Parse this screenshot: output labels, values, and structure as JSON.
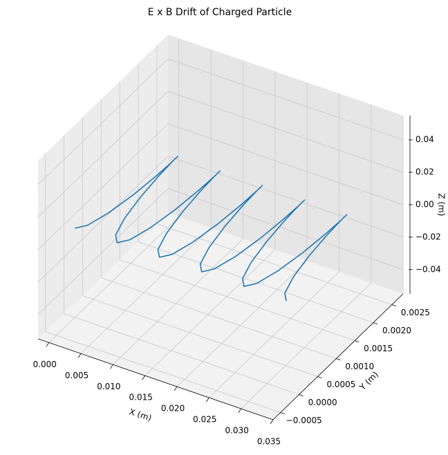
{
  "chart_data": {
    "type": "line3d",
    "title": "E x B Drift of Charged Particle",
    "xlabel": "X (m)",
    "ylabel": "Y (m)",
    "zlabel": "Z (m)",
    "xlim": [
      -0.0017,
      0.035
    ],
    "ylim": [
      -0.0007,
      0.0028
    ],
    "zlim": [
      -0.055,
      0.055
    ],
    "xticks": [
      {
        "value": 0,
        "label": "0.000"
      },
      {
        "value": 0.005,
        "label": "0.005"
      },
      {
        "value": 0.01,
        "label": "0.010"
      },
      {
        "value": 0.015,
        "label": "0.015"
      },
      {
        "value": 0.02,
        "label": "0.020"
      },
      {
        "value": 0.025,
        "label": "0.025"
      },
      {
        "value": 0.03,
        "label": "0.030"
      },
      {
        "value": 0.035,
        "label": "0.035"
      }
    ],
    "yticks": [
      {
        "value": -0.0005,
        "label": "−0.0005"
      },
      {
        "value": 0,
        "label": "0.0000"
      },
      {
        "value": 0.0005,
        "label": "0.0005"
      },
      {
        "value": 0.001,
        "label": "0.0010"
      },
      {
        "value": 0.0015,
        "label": "0.0015"
      },
      {
        "value": 0.002,
        "label": "0.0020"
      },
      {
        "value": 0.0025,
        "label": "0.0025"
      }
    ],
    "zticks": [
      {
        "value": -0.04,
        "label": "−0.04"
      },
      {
        "value": -0.02,
        "label": "−0.02"
      },
      {
        "value": 0,
        "label": "0.00"
      },
      {
        "value": 0.02,
        "label": "0.02"
      },
      {
        "value": 0.04,
        "label": "0.04"
      }
    ],
    "grid": true,
    "series": [
      {
        "color": "#1f77b4",
        "x": [
          0,
          0.0011,
          0.00205,
          0.00275,
          0.00315,
          0.0033,
          0.0033,
          0.0033,
          0.00345,
          0.00385,
          0.00455,
          0.0055,
          0.0066,
          0.0077,
          0.00865,
          0.00935,
          0.00975,
          0.0099,
          0.0099,
          0.0099,
          0.01005,
          0.01045,
          0.01115,
          0.0121,
          0.0132,
          0.0143,
          0.01525,
          0.01595,
          0.01635,
          0.0165,
          0.0165,
          0.0165,
          0.01665,
          0.01705,
          0.01775,
          0.0187,
          0.0198,
          0.0209,
          0.02185,
          0.02255,
          0.02295,
          0.0231,
          0.0231,
          0.0231,
          0.02325,
          0.02365,
          0.02435,
          0.0253,
          0.0264,
          0.0275,
          0.02845,
          0.02915,
          0.02955,
          0.0297,
          0.0297,
          0.0297,
          0.02985,
          0.03025,
          0.03095,
          0.0319,
          0.033
        ],
        "y": [
          0,
          0.00015,
          0.00055,
          0.0011,
          0.00165,
          0.00205,
          0.0022,
          0.00205,
          0.00165,
          0.0011,
          0.00055,
          0.00015,
          0,
          0.00015,
          0.00055,
          0.0011,
          0.00165,
          0.00205,
          0.0022,
          0.00205,
          0.00165,
          0.0011,
          0.00055,
          0.00015,
          0,
          0.00015,
          0.00055,
          0.0011,
          0.00165,
          0.00205,
          0.0022,
          0.00205,
          0.00165,
          0.0011,
          0.00055,
          0.00015,
          0,
          0.00015,
          0.00055,
          0.0011,
          0.00165,
          0.00205,
          0.0022,
          0.00205,
          0.00165,
          0.0011,
          0.00055,
          0.00015,
          0,
          0.00015,
          0.00055,
          0.0011,
          0.00165,
          0.00205,
          0.0022,
          0.00205,
          0.00165,
          0.0011,
          0.00055,
          0.00015,
          0
        ],
        "z": [
          0,
          0,
          0,
          0,
          0,
          0,
          0,
          0,
          0,
          0,
          0,
          0,
          0,
          0,
          0,
          0,
          0,
          0,
          0,
          0,
          0,
          0,
          0,
          0,
          0,
          0,
          0,
          0,
          0,
          0,
          0,
          0,
          0,
          0,
          0,
          0,
          0,
          0,
          0,
          0,
          0,
          0,
          0,
          0,
          0,
          0,
          0,
          0,
          0,
          0,
          0,
          0,
          0,
          0,
          0,
          0,
          0,
          0,
          0,
          0,
          0
        ]
      }
    ]
  }
}
